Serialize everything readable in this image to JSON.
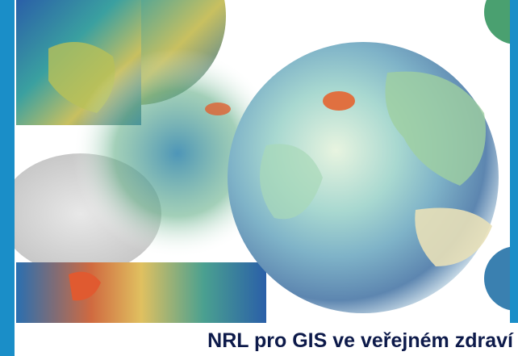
{
  "caption": "NRL pro GIS ve veřejném zdraví"
}
